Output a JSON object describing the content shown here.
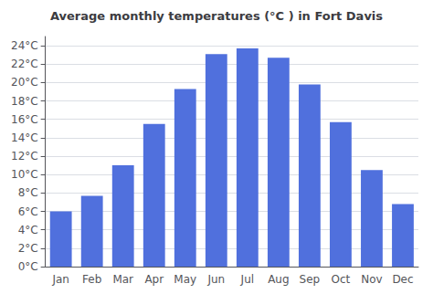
{
  "chart_data": {
    "type": "bar",
    "title": "Average monthly temperatures (°C ) in Fort Davis",
    "categories": [
      "Jan",
      "Feb",
      "Mar",
      "Apr",
      "May",
      "Jun",
      "Jul",
      "Aug",
      "Sep",
      "Oct",
      "Nov",
      "Dec"
    ],
    "values": [
      6.0,
      7.7,
      11.0,
      15.5,
      19.3,
      23.1,
      23.7,
      22.7,
      19.8,
      15.7,
      10.5,
      6.8
    ],
    "ylim": [
      0,
      25
    ],
    "yticks": [
      {
        "value": 0,
        "label": "0°C"
      },
      {
        "value": 2,
        "label": "2°C"
      },
      {
        "value": 4,
        "label": "4°C"
      },
      {
        "value": 6,
        "label": "6°C"
      },
      {
        "value": 8,
        "label": "8°C"
      },
      {
        "value": 10,
        "label": "10°C"
      },
      {
        "value": 12,
        "label": "12°C"
      },
      {
        "value": 14,
        "label": "14°C"
      },
      {
        "value": 16,
        "label": "16°C"
      },
      {
        "value": 18,
        "label": "18°C"
      },
      {
        "value": 20,
        "label": "20°C"
      },
      {
        "value": 22,
        "label": "22°C"
      },
      {
        "value": 24,
        "label": "24°C"
      }
    ],
    "grid": true
  }
}
